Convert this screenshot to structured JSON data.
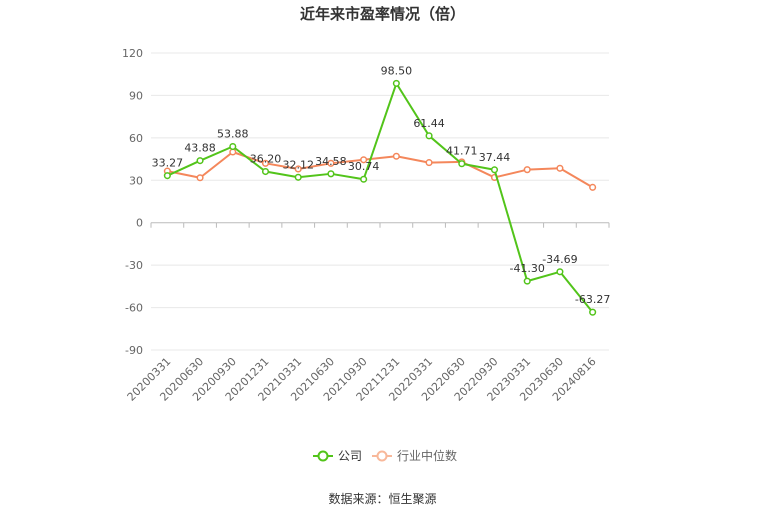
{
  "chart_data": {
    "type": "line",
    "title": "近年来市盈率情况（倍）",
    "categories": [
      "20200331",
      "20200630",
      "20200930",
      "20201231",
      "20210331",
      "20210630",
      "20210930",
      "20211231",
      "20220331",
      "20220630",
      "20220930",
      "20230331",
      "20230630",
      "20240816"
    ],
    "y_ticks": [
      "120",
      "90",
      "60",
      "30",
      "0",
      "-30",
      "-60",
      "-90"
    ],
    "ylim": [
      -90,
      120
    ],
    "grid": true,
    "legend_position": "bottom",
    "series": [
      {
        "name": "公司",
        "color": "#52c41a",
        "values": [
          33.27,
          43.88,
          53.88,
          36.2,
          32.12,
          34.58,
          30.74,
          98.5,
          61.44,
          41.71,
          37.44,
          -41.3,
          -34.69,
          -63.27
        ],
        "labels": [
          "33.27",
          "43.88",
          "53.88",
          "36.20",
          "32.12",
          "34.58",
          "30.74",
          "98.50",
          "61.44",
          "41.71",
          "37.44",
          "-41.30",
          "-34.69",
          "-63.27"
        ]
      },
      {
        "name": "行业中位数",
        "color": "#f4875b",
        "values": [
          36.5,
          31.8,
          50.0,
          42.0,
          38.0,
          42.0,
          44.5,
          47.0,
          42.5,
          43.0,
          32.0,
          37.5,
          38.5,
          25.0
        ]
      }
    ],
    "source": "数据来源：恒生聚源"
  }
}
